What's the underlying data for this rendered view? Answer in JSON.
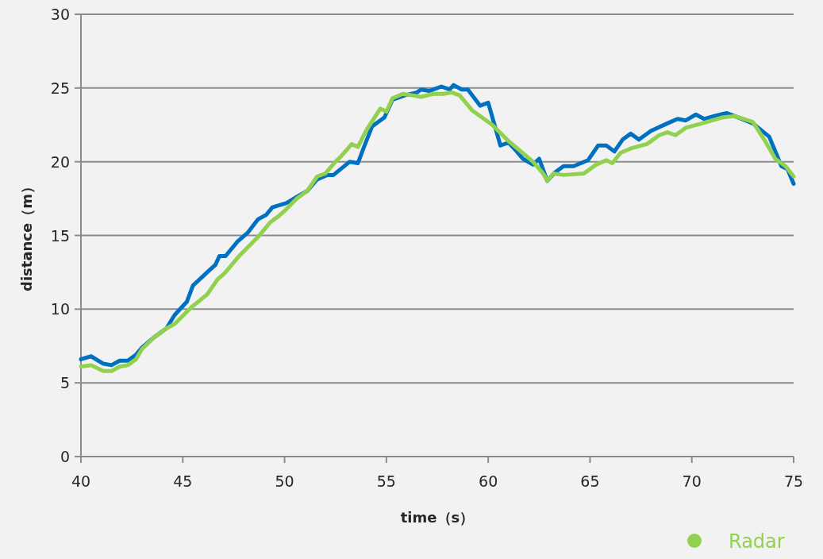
{
  "chart_data": {
    "type": "line",
    "xlabel": "time（s）",
    "ylabel": "distance（m）",
    "xlim": [
      40,
      75
    ],
    "xticks": [
      40,
      45,
      50,
      55,
      60,
      65,
      70,
      75
    ],
    "ylim": [
      0,
      30
    ],
    "yticks": [
      0,
      5,
      10,
      15,
      20,
      25,
      30
    ],
    "grid": "y",
    "legend": "bottom right",
    "marker": "none",
    "line_style": "solid",
    "series": [
      {
        "color": "#0070c0",
        "x": [
          40.0,
          40.5,
          41.1,
          41.5,
          41.9,
          42.3,
          42.7,
          43.0,
          43.6,
          44.2,
          44.6,
          45.2,
          45.5,
          46.2,
          46.6,
          46.8,
          47.1,
          47.7,
          48.2,
          48.7,
          49.1,
          49.4,
          50.1,
          50.7,
          51.1,
          51.6,
          52.1,
          52.4,
          53.2,
          53.6,
          53.9,
          54.3,
          54.6,
          54.9,
          55.3,
          55.9,
          56.5,
          56.7,
          57.1,
          57.7,
          58.1,
          58.3,
          58.7,
          59.0,
          59.6,
          60.0,
          60.6,
          61.0,
          61.4,
          61.7,
          62.2,
          62.5,
          62.9,
          63.3,
          63.7,
          64.2,
          64.9,
          65.4,
          65.8,
          66.2,
          66.6,
          67.0,
          67.4,
          68.0,
          68.8,
          69.3,
          69.7,
          70.2,
          70.6,
          71.1,
          71.7,
          72.1,
          73.0,
          73.8,
          74.4,
          74.7,
          75.0
        ],
        "values": [
          6.6,
          6.8,
          6.3,
          6.2,
          6.5,
          6.5,
          6.9,
          7.4,
          8.1,
          8.7,
          9.6,
          10.5,
          11.6,
          12.5,
          13.0,
          13.6,
          13.6,
          14.6,
          15.2,
          16.1,
          16.4,
          16.9,
          17.2,
          17.7,
          18.0,
          18.8,
          19.1,
          19.1,
          20.0,
          19.9,
          21.0,
          22.4,
          22.7,
          23.0,
          24.2,
          24.5,
          24.7,
          24.9,
          24.8,
          25.1,
          24.9,
          25.2,
          24.9,
          24.9,
          23.8,
          24.0,
          21.1,
          21.3,
          20.7,
          20.2,
          19.8,
          20.2,
          18.7,
          19.3,
          19.7,
          19.7,
          20.1,
          21.1,
          21.1,
          20.7,
          21.5,
          21.9,
          21.5,
          22.1,
          22.6,
          22.9,
          22.8,
          23.2,
          22.9,
          23.1,
          23.3,
          23.1,
          22.6,
          21.7,
          19.7,
          19.5,
          18.5
        ]
      },
      {
        "name": "Radar",
        "color": "#92d050",
        "x": [
          40.0,
          40.5,
          41.1,
          41.5,
          41.9,
          42.3,
          42.7,
          43.0,
          43.6,
          44.2,
          44.6,
          45.4,
          46.2,
          46.7,
          47.1,
          47.7,
          48.2,
          48.7,
          49.3,
          49.7,
          50.1,
          50.6,
          51.1,
          51.6,
          52.0,
          52.5,
          52.8,
          53.3,
          53.6,
          54.0,
          54.7,
          55.0,
          55.3,
          55.8,
          56.3,
          56.7,
          57.3,
          57.8,
          58.2,
          58.6,
          59.2,
          60.2,
          61.0,
          61.6,
          62.2,
          62.7,
          62.9,
          63.2,
          63.7,
          64.7,
          65.3,
          65.8,
          66.1,
          66.5,
          67.0,
          67.8,
          68.4,
          68.8,
          69.2,
          69.7,
          70.5,
          71.5,
          72.1,
          73.0,
          73.6,
          74.1,
          74.6,
          75.0
        ],
        "values": [
          6.1,
          6.2,
          5.8,
          5.8,
          6.1,
          6.2,
          6.6,
          7.3,
          8.1,
          8.7,
          9.0,
          10.1,
          11.0,
          12.0,
          12.5,
          13.5,
          14.2,
          14.9,
          15.9,
          16.3,
          16.8,
          17.5,
          18.0,
          19.0,
          19.2,
          20.0,
          20.4,
          21.2,
          21.0,
          22.1,
          23.6,
          23.4,
          24.3,
          24.6,
          24.5,
          24.4,
          24.6,
          24.6,
          24.7,
          24.5,
          23.5,
          22.5,
          21.4,
          20.7,
          20.0,
          19.2,
          18.7,
          19.2,
          19.1,
          19.2,
          19.8,
          20.1,
          19.9,
          20.6,
          20.9,
          21.2,
          21.8,
          22.0,
          21.8,
          22.3,
          22.6,
          23.0,
          23.1,
          22.7,
          21.4,
          20.2,
          19.7,
          19.0
        ]
      }
    ]
  }
}
